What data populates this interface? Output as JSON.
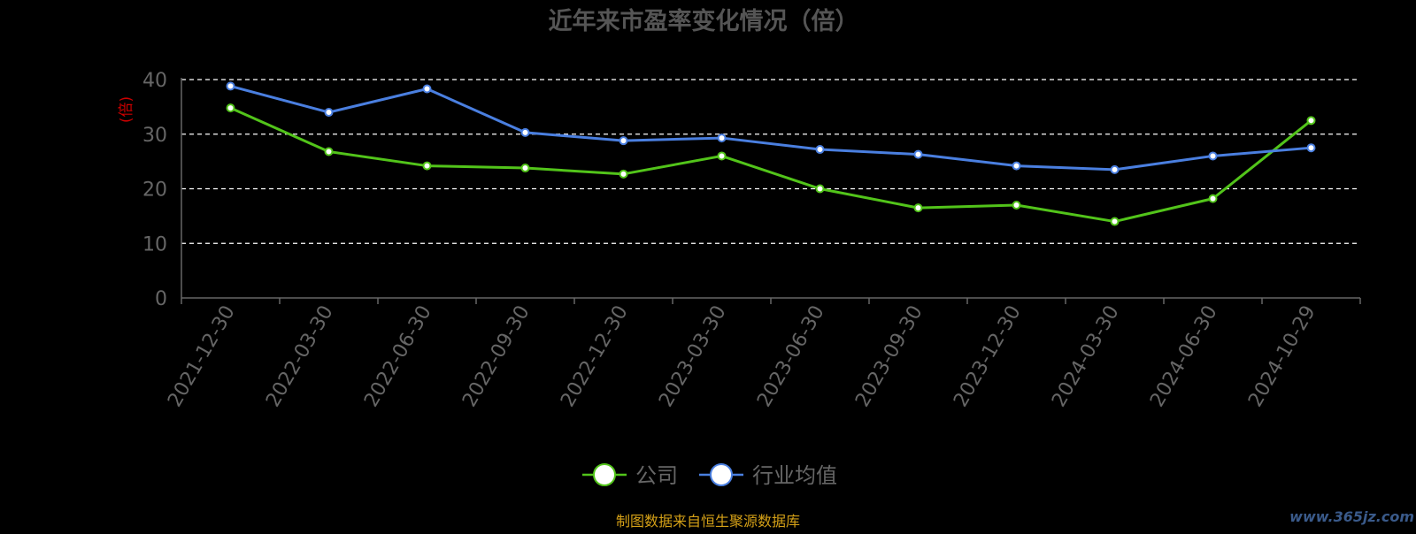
{
  "chart_data": {
    "type": "line",
    "title": "近年来市盈率变化情况（倍）",
    "ylabel": "(倍)",
    "xlabel": "",
    "categories": [
      "2021-12-30",
      "2022-03-30",
      "2022-06-30",
      "2022-09-30",
      "2022-12-30",
      "2023-03-30",
      "2023-06-30",
      "2023-09-30",
      "2023-12-30",
      "2024-03-30",
      "2024-06-30",
      "2024-10-29"
    ],
    "y_ticks": [
      "0",
      "10",
      "20",
      "30",
      "40"
    ],
    "ylim": [
      0,
      40
    ],
    "grid": true,
    "legend_position": "bottom",
    "series": [
      {
        "name": "公司",
        "color": "#52c41a",
        "values": [
          34.8,
          26.8,
          24.2,
          23.8,
          22.7,
          26.0,
          20.0,
          16.5,
          17.0,
          14.0,
          18.2,
          32.5
        ]
      },
      {
        "name": "行业均值",
        "color": "#4a7fe0",
        "values": [
          38.8,
          34.0,
          38.3,
          30.3,
          28.8,
          29.3,
          27.2,
          26.3,
          24.2,
          23.5,
          26.0,
          27.5
        ]
      }
    ]
  },
  "source_note": "制图数据来自恒生聚源数据库",
  "watermark": "www.365jz.com",
  "colors": {
    "background": "#000000",
    "axis": "#666666",
    "grid": "#ffffff",
    "title": "#555555",
    "ylabel": "#cc0000",
    "tick_label": "#666666",
    "legend_text": "#666666",
    "source_note": "#d4a017",
    "watermark": "#3a5a8a"
  }
}
